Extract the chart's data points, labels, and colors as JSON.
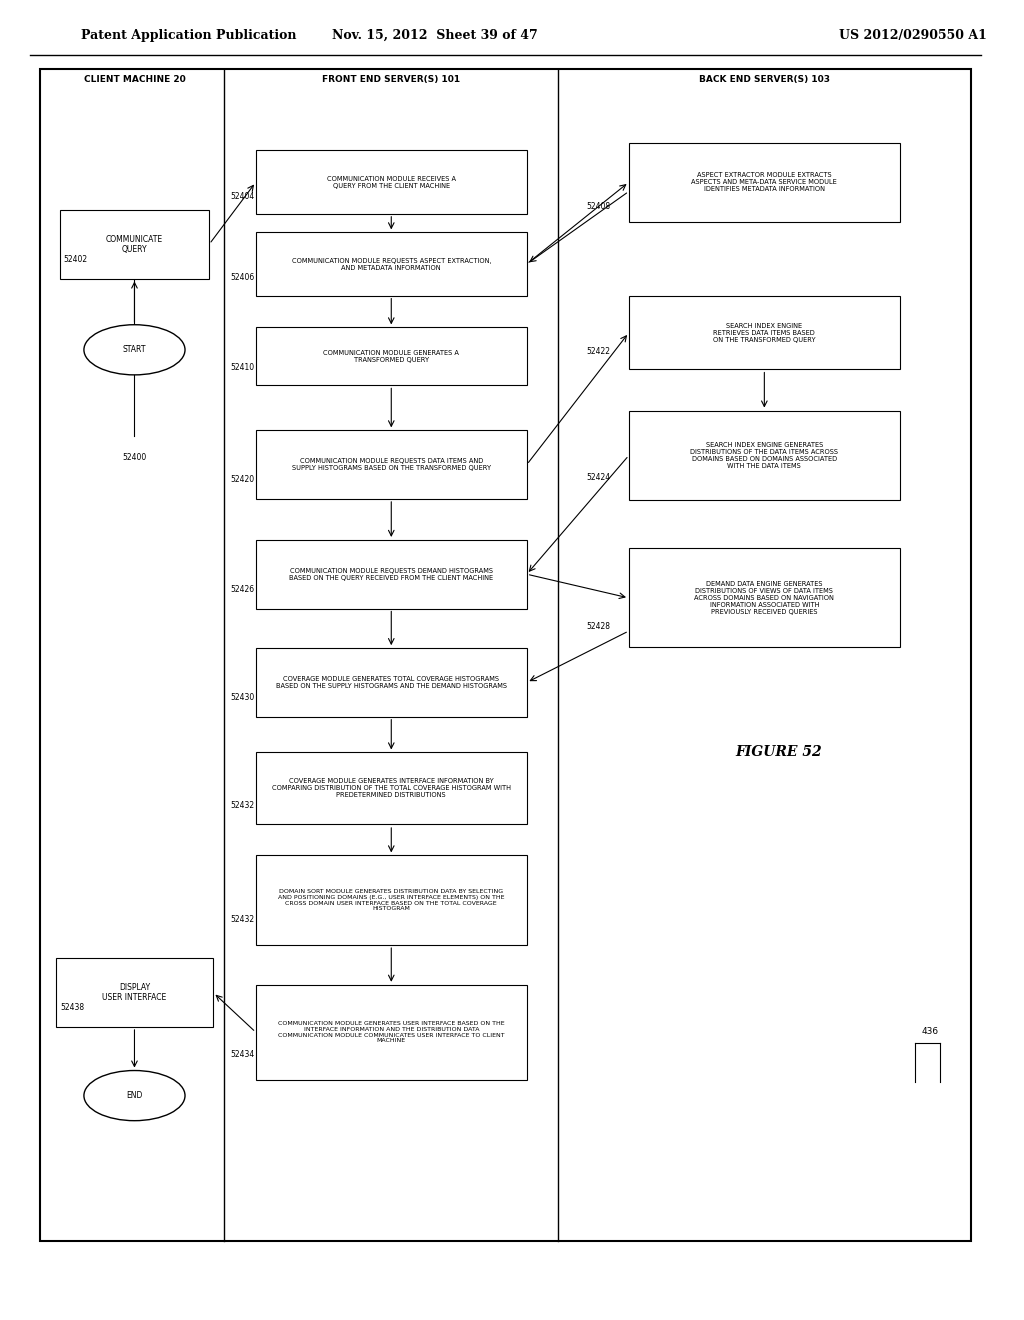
{
  "title_left": "Patent Application Publication",
  "title_center": "Nov. 15, 2012  Sheet 39 of 47",
  "title_right": "US 2012/0290550 A1",
  "figure_label": "FIGURE 52",
  "background_color": "#ffffff"
}
